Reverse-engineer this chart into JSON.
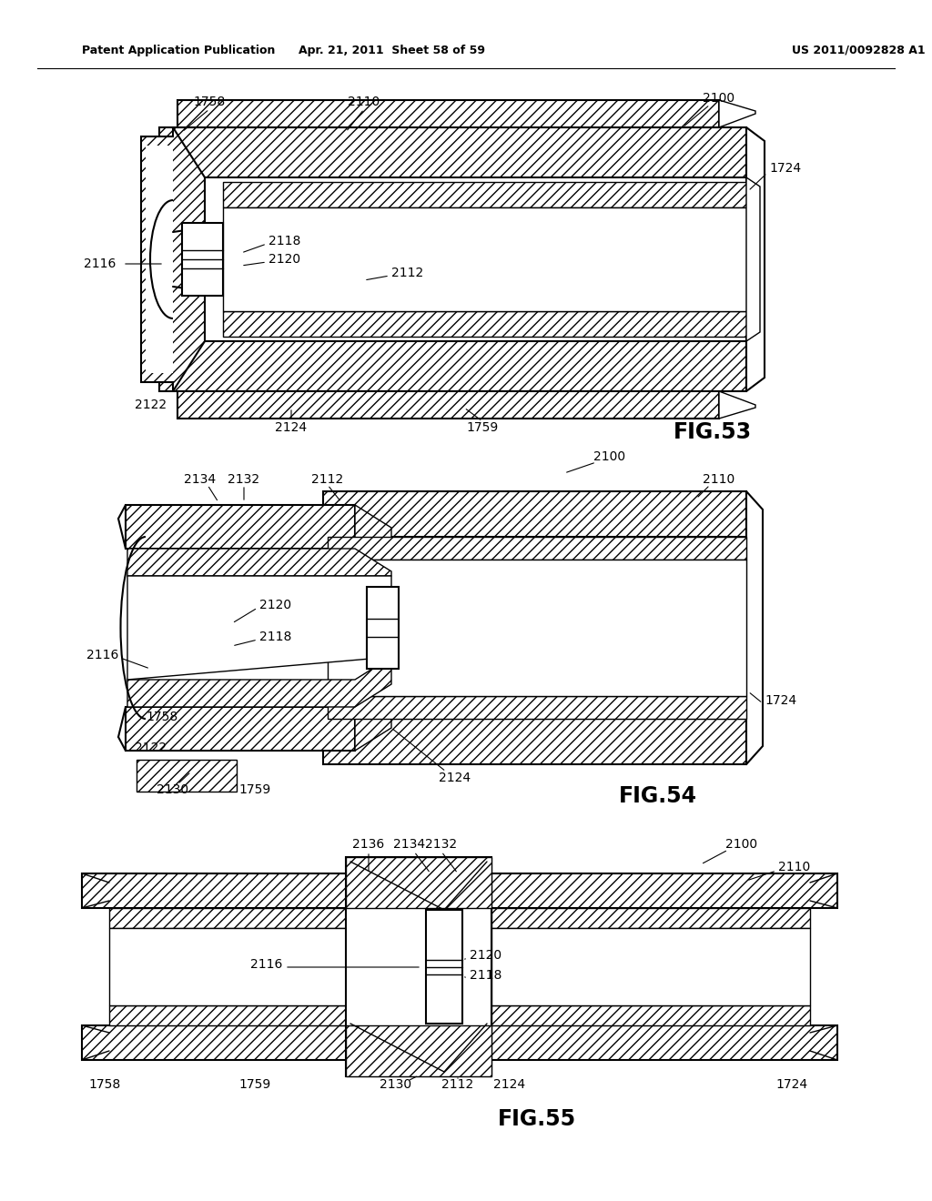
{
  "background_color": "#ffffff",
  "header_left": "Patent Application Publication",
  "header_center": "Apr. 21, 2011  Sheet 58 of 59",
  "header_right": "US 2011/0092828 A1",
  "fig53_label": "FIG.53",
  "fig54_label": "FIG.54",
  "fig55_label": "FIG.55"
}
